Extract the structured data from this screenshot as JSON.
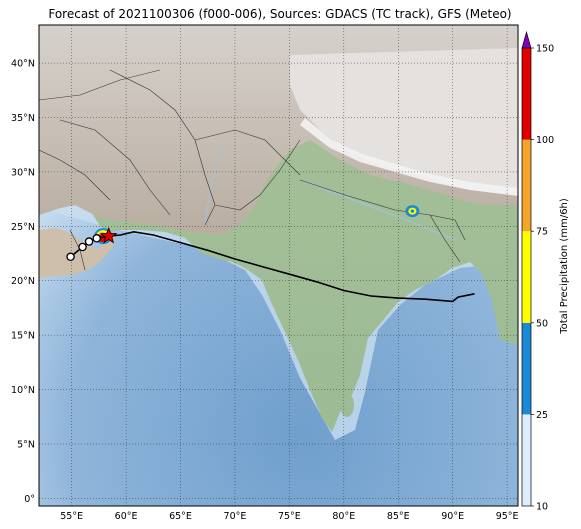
{
  "map": {
    "title": "Forecast of 2021100306 (f000-006), Sources: GDACS (TC track), GFS (Meteo)",
    "extent": {
      "lon_min": 52,
      "lon_max": 96,
      "lat_min": -0.7,
      "lat_max": 43.5
    },
    "lon_ticks": [
      55,
      60,
      65,
      70,
      75,
      80,
      85,
      90,
      95
    ],
    "lat_ticks": [
      0,
      5,
      10,
      15,
      20,
      25,
      30,
      35,
      40
    ],
    "lon_labels": [
      "55°E",
      "60°E",
      "65°E",
      "70°E",
      "75°E",
      "80°E",
      "85°E",
      "90°E",
      "95°E"
    ],
    "lat_labels": [
      "0°",
      "5°N",
      "10°N",
      "15°N",
      "20°N",
      "25°N",
      "30°N",
      "35°N",
      "40°N"
    ],
    "grid": "dotted",
    "colors": {
      "ocean_deep": "#7aa6cf",
      "ocean_shallow": "#d6e8f6",
      "land_low": "#8fb596",
      "land_mid": "#c9b79a",
      "land_high": "#b7aca2",
      "snow": "#eeeeee",
      "track": "#000000",
      "storm_marker": "#e00000"
    }
  },
  "track": {
    "past_positions": [
      [
        54.9,
        22.2
      ],
      [
        56.0,
        23.1
      ],
      [
        56.6,
        23.6
      ],
      [
        57.3,
        23.9
      ]
    ],
    "current_position": [
      58.4,
      24.1
    ],
    "forecast_line": [
      [
        58.4,
        24.1
      ],
      [
        59.5,
        24.2
      ],
      [
        60.7,
        24.5
      ],
      [
        62.5,
        24.2
      ],
      [
        65.0,
        23.5
      ],
      [
        67.5,
        22.8
      ],
      [
        70.0,
        22.0
      ],
      [
        72.5,
        21.3
      ],
      [
        75.0,
        20.6
      ],
      [
        77.5,
        19.9
      ],
      [
        80.0,
        19.1
      ],
      [
        82.5,
        18.6
      ],
      [
        85.0,
        18.4
      ],
      [
        87.5,
        18.3
      ],
      [
        90.0,
        18.1
      ],
      [
        90.5,
        18.5
      ],
      [
        92.0,
        18.8
      ]
    ]
  },
  "precipitation_spots": [
    {
      "lon": 57.9,
      "lat": 24.1,
      "level": "heavy"
    },
    {
      "lon": 86.3,
      "lat": 26.4,
      "level": "moderate"
    }
  ],
  "colorbar": {
    "label": "Total Precipitation (mm/6h)",
    "ticks": [
      "10",
      "25",
      "50",
      "75",
      "100",
      "150"
    ],
    "colors": [
      "#ddeeff",
      "#1a8ad8",
      "#ffff00",
      "#f5a52a",
      "#e00000"
    ],
    "extend_color": "#7f00bf"
  }
}
